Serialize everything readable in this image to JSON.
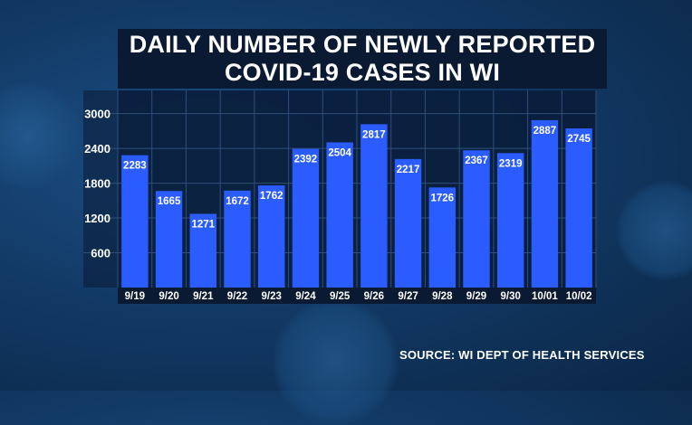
{
  "chart_data": {
    "type": "bar",
    "title_line1": "DAILY NUMBER OF NEWLY REPORTED",
    "title_line2": "COVID-19 CASES IN WI",
    "categories": [
      "9/19",
      "9/20",
      "9/21",
      "9/22",
      "9/23",
      "9/24",
      "9/25",
      "9/26",
      "9/27",
      "9/28",
      "9/29",
      "9/30",
      "10/01",
      "10/02"
    ],
    "values": [
      2283,
      1665,
      1271,
      1672,
      1762,
      2392,
      2504,
      2817,
      2217,
      1726,
      2367,
      2319,
      2887,
      2745
    ],
    "yticks": [
      600,
      1200,
      1800,
      2400,
      3000
    ],
    "ylim": [
      0,
      3400
    ],
    "bar_color": "#2a5cff",
    "grid": true
  },
  "source": "SOURCE: WI DEPT OF HEALTH SERVICES"
}
